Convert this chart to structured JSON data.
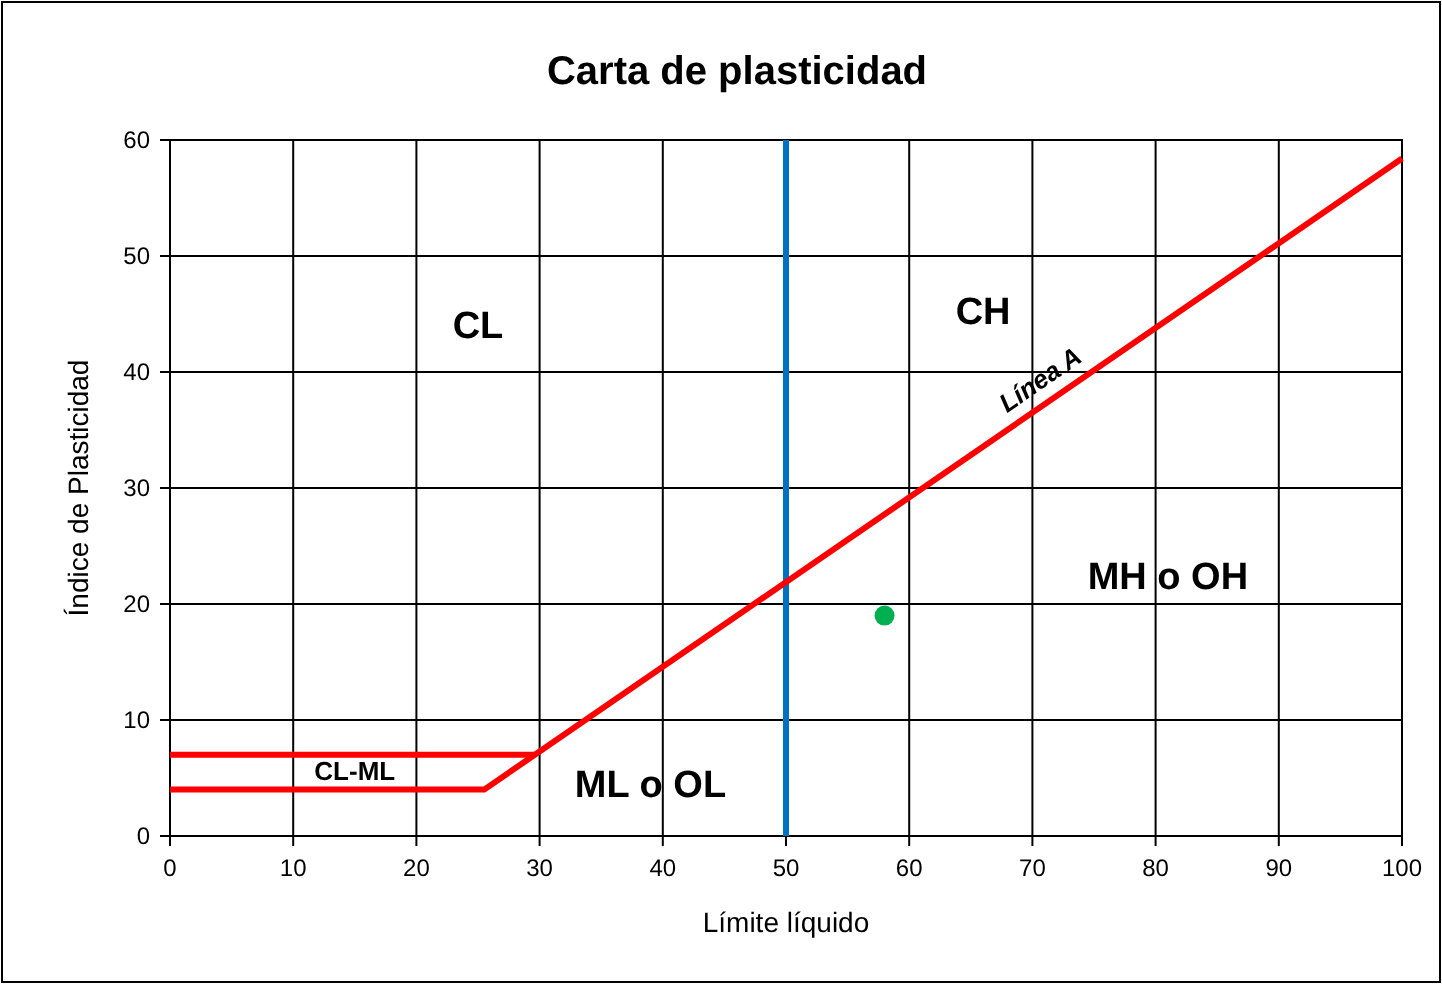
{
  "chart_data": {
    "type": "line",
    "title": "Carta de plasticidad",
    "xlabel": "Límite líquido",
    "ylabel": "Índice de Plasticidad",
    "xlim": [
      0,
      100
    ],
    "ylim": [
      0,
      60
    ],
    "xticks": [
      0,
      10,
      20,
      30,
      40,
      50,
      60,
      70,
      80,
      90,
      100
    ],
    "yticks": [
      0,
      10,
      20,
      30,
      40,
      50,
      60
    ],
    "grid": true,
    "marker": "none",
    "series": [
      {
        "name": "Línea A",
        "color": "#ff0000",
        "x": [
          0,
          25.5,
          100
        ],
        "values": [
          4,
          4,
          58.4
        ]
      },
      {
        "color": "#ff0000",
        "x": [
          0,
          29.6
        ],
        "values": [
          7,
          7
        ]
      },
      {
        "type": "scatter",
        "color": "#00b050",
        "marker": "circle",
        "x": [
          58
        ],
        "values": [
          19
        ]
      }
    ],
    "ref_lines": [
      {
        "axis": "x",
        "value": 50,
        "color": "#0070c0"
      }
    ],
    "annotations": [
      "CL",
      "CH",
      "MH o OH",
      "ML o OL",
      "CL-ML"
    ]
  }
}
